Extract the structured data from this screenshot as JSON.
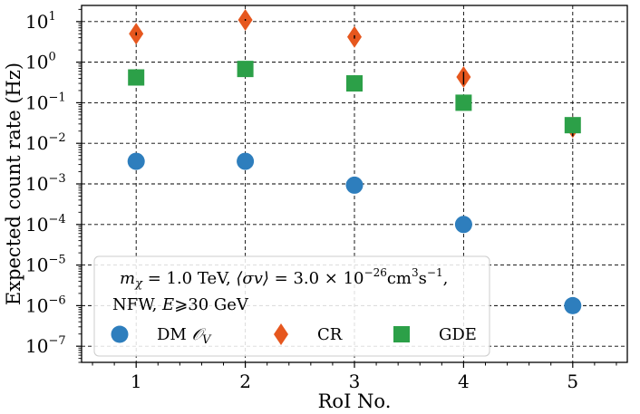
{
  "chart_data": {
    "type": "scatter",
    "title": "",
    "xlabel": "RoI No.",
    "ylabel": "Expected count rate (Hz)",
    "x_scale": "linear",
    "y_scale": "log",
    "xlim": [
      0.5,
      5.5
    ],
    "ylim": [
      4e-08,
      25
    ],
    "x_ticks": [
      1,
      2,
      3,
      4,
      5
    ],
    "x_tick_labels": [
      "1",
      "2",
      "3",
      "4",
      "5"
    ],
    "y_ticks": [
      1e-07,
      1e-06,
      1e-05,
      0.0001,
      0.001,
      0.01,
      0.1,
      1,
      10
    ],
    "y_tick_labels": [
      {
        "base": "10",
        "exp": "−7"
      },
      {
        "base": "10",
        "exp": "−6"
      },
      {
        "base": "10",
        "exp": "−5"
      },
      {
        "base": "10",
        "exp": "−4"
      },
      {
        "base": "10",
        "exp": "−3"
      },
      {
        "base": "10",
        "exp": "−2"
      },
      {
        "base": "10",
        "exp": "−1"
      },
      {
        "base": "10",
        "exp": "0"
      },
      {
        "base": "10",
        "exp": "1"
      }
    ],
    "grid": true,
    "legend": {
      "placement": "lower-left",
      "line1": "m_χ = 1.0 TeV, ⟨σv⟩ = 3.0 × 10^−26 cm^3 s^−1,",
      "line1_parts": {
        "m": "m",
        "chi": "χ",
        "eq1": " = 1.0 TeV, ",
        "sv": "⟨σv⟩",
        "eq2": " = 3.0 × 10",
        "exp1": "−26",
        "cm": "cm",
        "exp2": "3",
        "s": "s",
        "exp3": "−1",
        "tail": ","
      },
      "line2": "NFW, E⩾30 GeV",
      "line2_parts": {
        "pre": "NFW, ",
        "E": "E",
        "post": "⩾30 GeV"
      }
    },
    "series": [
      {
        "name": "DM 𝒪_V",
        "label_main": "DM ",
        "label_sym": "𝒪",
        "label_sub": "V",
        "marker": "circle",
        "color": "#2e7ebd",
        "x": [
          1,
          2,
          3,
          4,
          5
        ],
        "values": [
          0.0036,
          0.0036,
          0.00093,
          0.0001,
          1e-06
        ],
        "errors": [
          0,
          0,
          0,
          0,
          0
        ]
      },
      {
        "name": "CR",
        "label_main": "CR",
        "marker": "diamond",
        "color": "#e6571e",
        "x": [
          1,
          2,
          3,
          4,
          5
        ],
        "values": [
          5.0,
          11.0,
          4.2,
          0.43,
          0.025
        ],
        "errors": [
          0.45,
          0.55,
          0.4,
          0.15,
          0.01
        ]
      },
      {
        "name": "GDE",
        "label_main": "GDE",
        "marker": "square",
        "color": "#2ca048",
        "x": [
          1,
          2,
          3,
          4,
          5
        ],
        "values": [
          0.42,
          0.68,
          0.3,
          0.1,
          0.028
        ],
        "errors": [
          0,
          0,
          0,
          0,
          0
        ]
      }
    ]
  }
}
